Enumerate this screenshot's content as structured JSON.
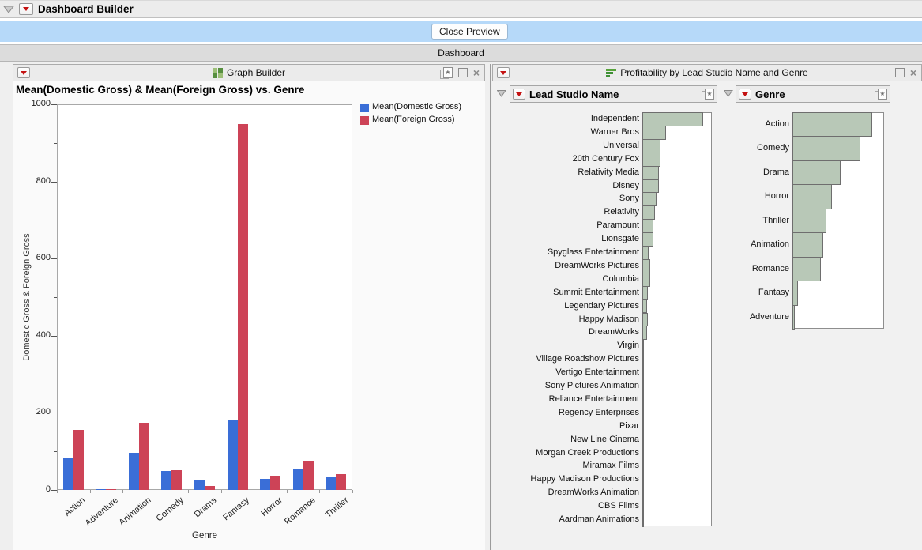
{
  "window": {
    "title": "Dashboard Builder"
  },
  "preview_bar": {
    "close_button_label": "Close Preview"
  },
  "dashboard_bar": {
    "label": "Dashboard"
  },
  "graph_builder_panel": {
    "title": "Graph Builder"
  },
  "profitability_panel": {
    "title": "Profitability by Lead Studio Name and Genre"
  },
  "icons": {
    "star": "★",
    "close": "×"
  },
  "colors": {
    "domestic_blue": "#3a6ed7",
    "foreign_red": "#cd4357",
    "filter_bar_green": "#b8c8b7",
    "preview_bar_blue": "#b6d9f9"
  },
  "chart_data": [
    {
      "type": "bar",
      "title": "Mean(Domestic Gross) & Mean(Foreign Gross) vs. Genre",
      "categories": [
        "Action",
        "Adventure",
        "Animation",
        "Comedy",
        "Drama",
        "Fantasy",
        "Horror",
        "Romance",
        "Thriller"
      ],
      "series": [
        {
          "name": "Mean(Domestic Gross)",
          "color": "#3a6ed7",
          "values": [
            85,
            1,
            97,
            49,
            27,
            183,
            28,
            54,
            33
          ]
        },
        {
          "name": "Mean(Foreign Gross)",
          "color": "#cd4357",
          "values": [
            156,
            1,
            174,
            52,
            11,
            948,
            36,
            74,
            42
          ]
        }
      ],
      "xlabel": "Genre",
      "ylabel": "Domestic Gross & Foreign Gross",
      "ylim": [
        0,
        1000
      ],
      "yticks": [
        0,
        200,
        400,
        600,
        800,
        1000
      ],
      "minor_tick_every": 100,
      "grid": false,
      "legend_position": "right"
    },
    {
      "type": "bar",
      "orientation": "horizontal",
      "title": "Lead Studio Name",
      "axis_visible": false,
      "xlim": [
        0,
        1
      ],
      "categories": [
        "Independent",
        "Warner Bros",
        "Universal",
        "20th Century Fox",
        "Relativity Media",
        "Disney",
        "Sony",
        "Relativity",
        "Paramount",
        "Lionsgate",
        "Spyglass Entertainment",
        "DreamWorks Pictures",
        "Columbia",
        "Summit Entertainment",
        "Legendary Pictures",
        "Happy Madison",
        "DreamWorks",
        "Virgin",
        "Village Roadshow Pictures",
        "Vertigo Entertainment",
        "Sony Pictures Animation",
        "Reliance Entertainment",
        "Regency Enterprises",
        "Pixar",
        "New Line Cinema",
        "Morgan Creek Productions",
        "Miramax Films",
        "Happy Madison Productions",
        "DreamWorks Animation",
        "CBS Films",
        "Aardman Animations"
      ],
      "values": [
        0.86,
        0.33,
        0.25,
        0.25,
        0.23,
        0.23,
        0.19,
        0.17,
        0.145,
        0.15,
        0.083,
        0.098,
        0.098,
        0.068,
        0.06,
        0.068,
        0.06,
        0.012,
        0.012,
        0.012,
        0.012,
        0.012,
        0.012,
        0.012,
        0.012,
        0.012,
        0.012,
        0.008,
        0.008,
        0.008,
        0.008
      ]
    },
    {
      "type": "bar",
      "orientation": "horizontal",
      "title": "Genre",
      "axis_visible": false,
      "xlim": [
        0,
        1
      ],
      "categories": [
        "Action",
        "Comedy",
        "Drama",
        "Horror",
        "Thriller",
        "Animation",
        "Romance",
        "Fantasy",
        "Adventure"
      ],
      "values": [
        0.86,
        0.73,
        0.52,
        0.42,
        0.36,
        0.33,
        0.3,
        0.05,
        0.02
      ]
    }
  ]
}
